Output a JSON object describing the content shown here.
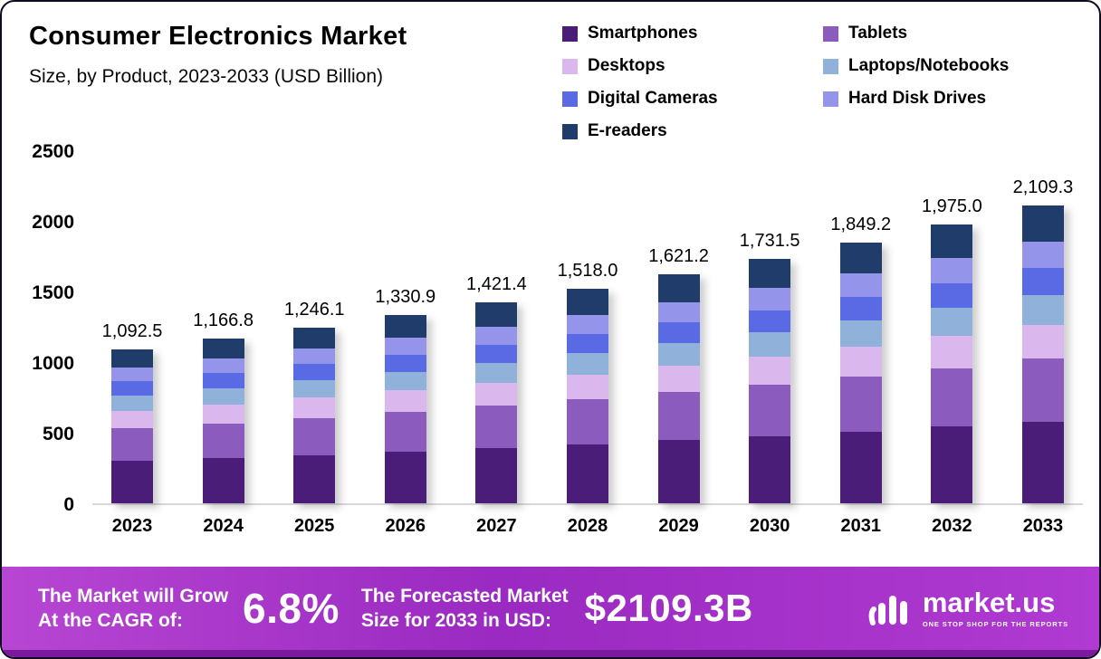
{
  "header": {
    "title": "Consumer Electronics Market",
    "subtitle": "Size, by Product, 2023-2033 (USD Billion)"
  },
  "chart_data": {
    "type": "bar",
    "stacked": true,
    "title": "Consumer Electronics Market Size, by Product, 2023-2033 (USD Billion)",
    "categories": [
      "2023",
      "2024",
      "2025",
      "2026",
      "2027",
      "2028",
      "2029",
      "2030",
      "2031",
      "2032",
      "2033"
    ],
    "ylim": [
      0,
      2500
    ],
    "yticks": [
      0,
      500,
      1000,
      1500,
      2000,
      2500
    ],
    "grid": false,
    "legend_position": "top-right",
    "totals": [
      1092.5,
      1166.8,
      1246.1,
      1330.9,
      1421.4,
      1518.0,
      1621.2,
      1731.5,
      1849.2,
      1975.0,
      2109.3
    ],
    "total_labels": [
      "1,092.5",
      "1,166.8",
      "1,246.1",
      "1,330.9",
      "1,421.4",
      "1,518.0",
      "1,621.2",
      "1,731.5",
      "1,849.2",
      "1,975.0",
      "2,109.3"
    ],
    "series": [
      {
        "name": "Smartphones",
        "color": "#4a1d78",
        "values": [
          300.4,
          320.9,
          342.7,
          366.0,
          390.9,
          417.5,
          445.8,
          476.2,
          508.5,
          543.1,
          580.1
        ]
      },
      {
        "name": "Tablets",
        "color": "#8b5bbd",
        "values": [
          229.4,
          245.0,
          261.7,
          279.5,
          298.5,
          318.8,
          340.5,
          363.6,
          388.3,
          414.8,
          443.0
        ]
      },
      {
        "name": "Desktops",
        "color": "#dab7ec",
        "values": [
          125.6,
          134.2,
          143.3,
          153.1,
          163.5,
          174.6,
          186.4,
          199.1,
          212.7,
          227.1,
          242.6
        ]
      },
      {
        "name": "Laptops/Notebooks",
        "color": "#90b2da",
        "values": [
          109.3,
          116.7,
          124.6,
          133.1,
          142.1,
          151.8,
          162.1,
          173.2,
          184.9,
          197.5,
          210.9
        ]
      },
      {
        "name": "Digital Cameras",
        "color": "#5a6ae4",
        "values": [
          98.3,
          105.0,
          112.1,
          119.8,
          127.9,
          136.6,
          145.9,
          155.8,
          166.4,
          177.8,
          189.8
        ]
      },
      {
        "name": "Hard Disk Drives",
        "color": "#9494ea",
        "values": [
          98.3,
          105.0,
          112.1,
          119.8,
          127.9,
          136.6,
          145.9,
          155.8,
          166.4,
          177.8,
          189.8
        ]
      },
      {
        "name": "E-readers",
        "color": "#203c6b",
        "values": [
          131.1,
          140.0,
          149.5,
          159.7,
          170.6,
          182.2,
          194.5,
          207.8,
          221.9,
          237.0,
          253.1
        ]
      }
    ]
  },
  "banner": {
    "cagr_label_line1": "The Market will Grow",
    "cagr_label_line2": "At the CAGR of:",
    "cagr_value": "6.8%",
    "forecast_label_line1": "The Forecasted Market",
    "forecast_label_line2": "Size for 2033 in USD:",
    "forecast_value": "$2109.3B",
    "logo_text": "market.us",
    "logo_tagline": "ONE STOP SHOP FOR THE REPORTS",
    "colors": {
      "gradient": [
        "#b746d3",
        "#9a2ac1",
        "#b03ad2"
      ],
      "bottom_strip": "#7c1a9d"
    }
  }
}
